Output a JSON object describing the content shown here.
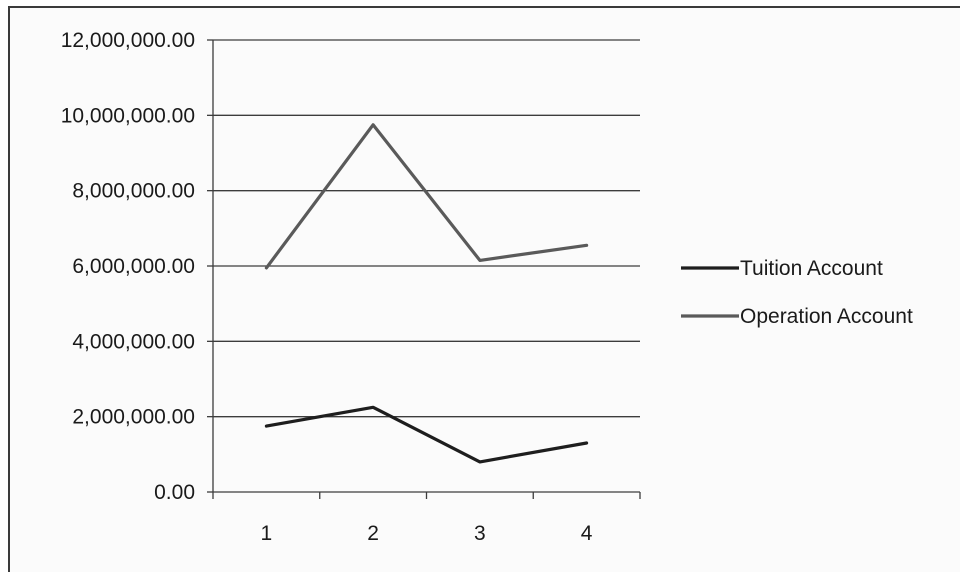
{
  "chart_data": {
    "type": "line",
    "title": "",
    "xlabel": "",
    "ylabel": "",
    "categories": [
      "1",
      "2",
      "3",
      "4"
    ],
    "ylim": [
      0,
      12000000
    ],
    "yticks": [
      0,
      2000000,
      4000000,
      6000000,
      8000000,
      10000000,
      12000000
    ],
    "ytick_labels": [
      "0.00",
      "2,000,000.00",
      "4,000,000.00",
      "6,000,000.00",
      "8,000,000.00",
      "10,000,000.00",
      "12,000,000.00"
    ],
    "grid": true,
    "legend_position": "right",
    "series": [
      {
        "name": "Tuition Account",
        "values": [
          1750000,
          2250000,
          800000,
          1300000
        ],
        "color": "#1e1e1e"
      },
      {
        "name": "Operation Account",
        "values": [
          5950000,
          9750000,
          6150000,
          6550000
        ],
        "color": "#5a5a5a"
      }
    ]
  }
}
